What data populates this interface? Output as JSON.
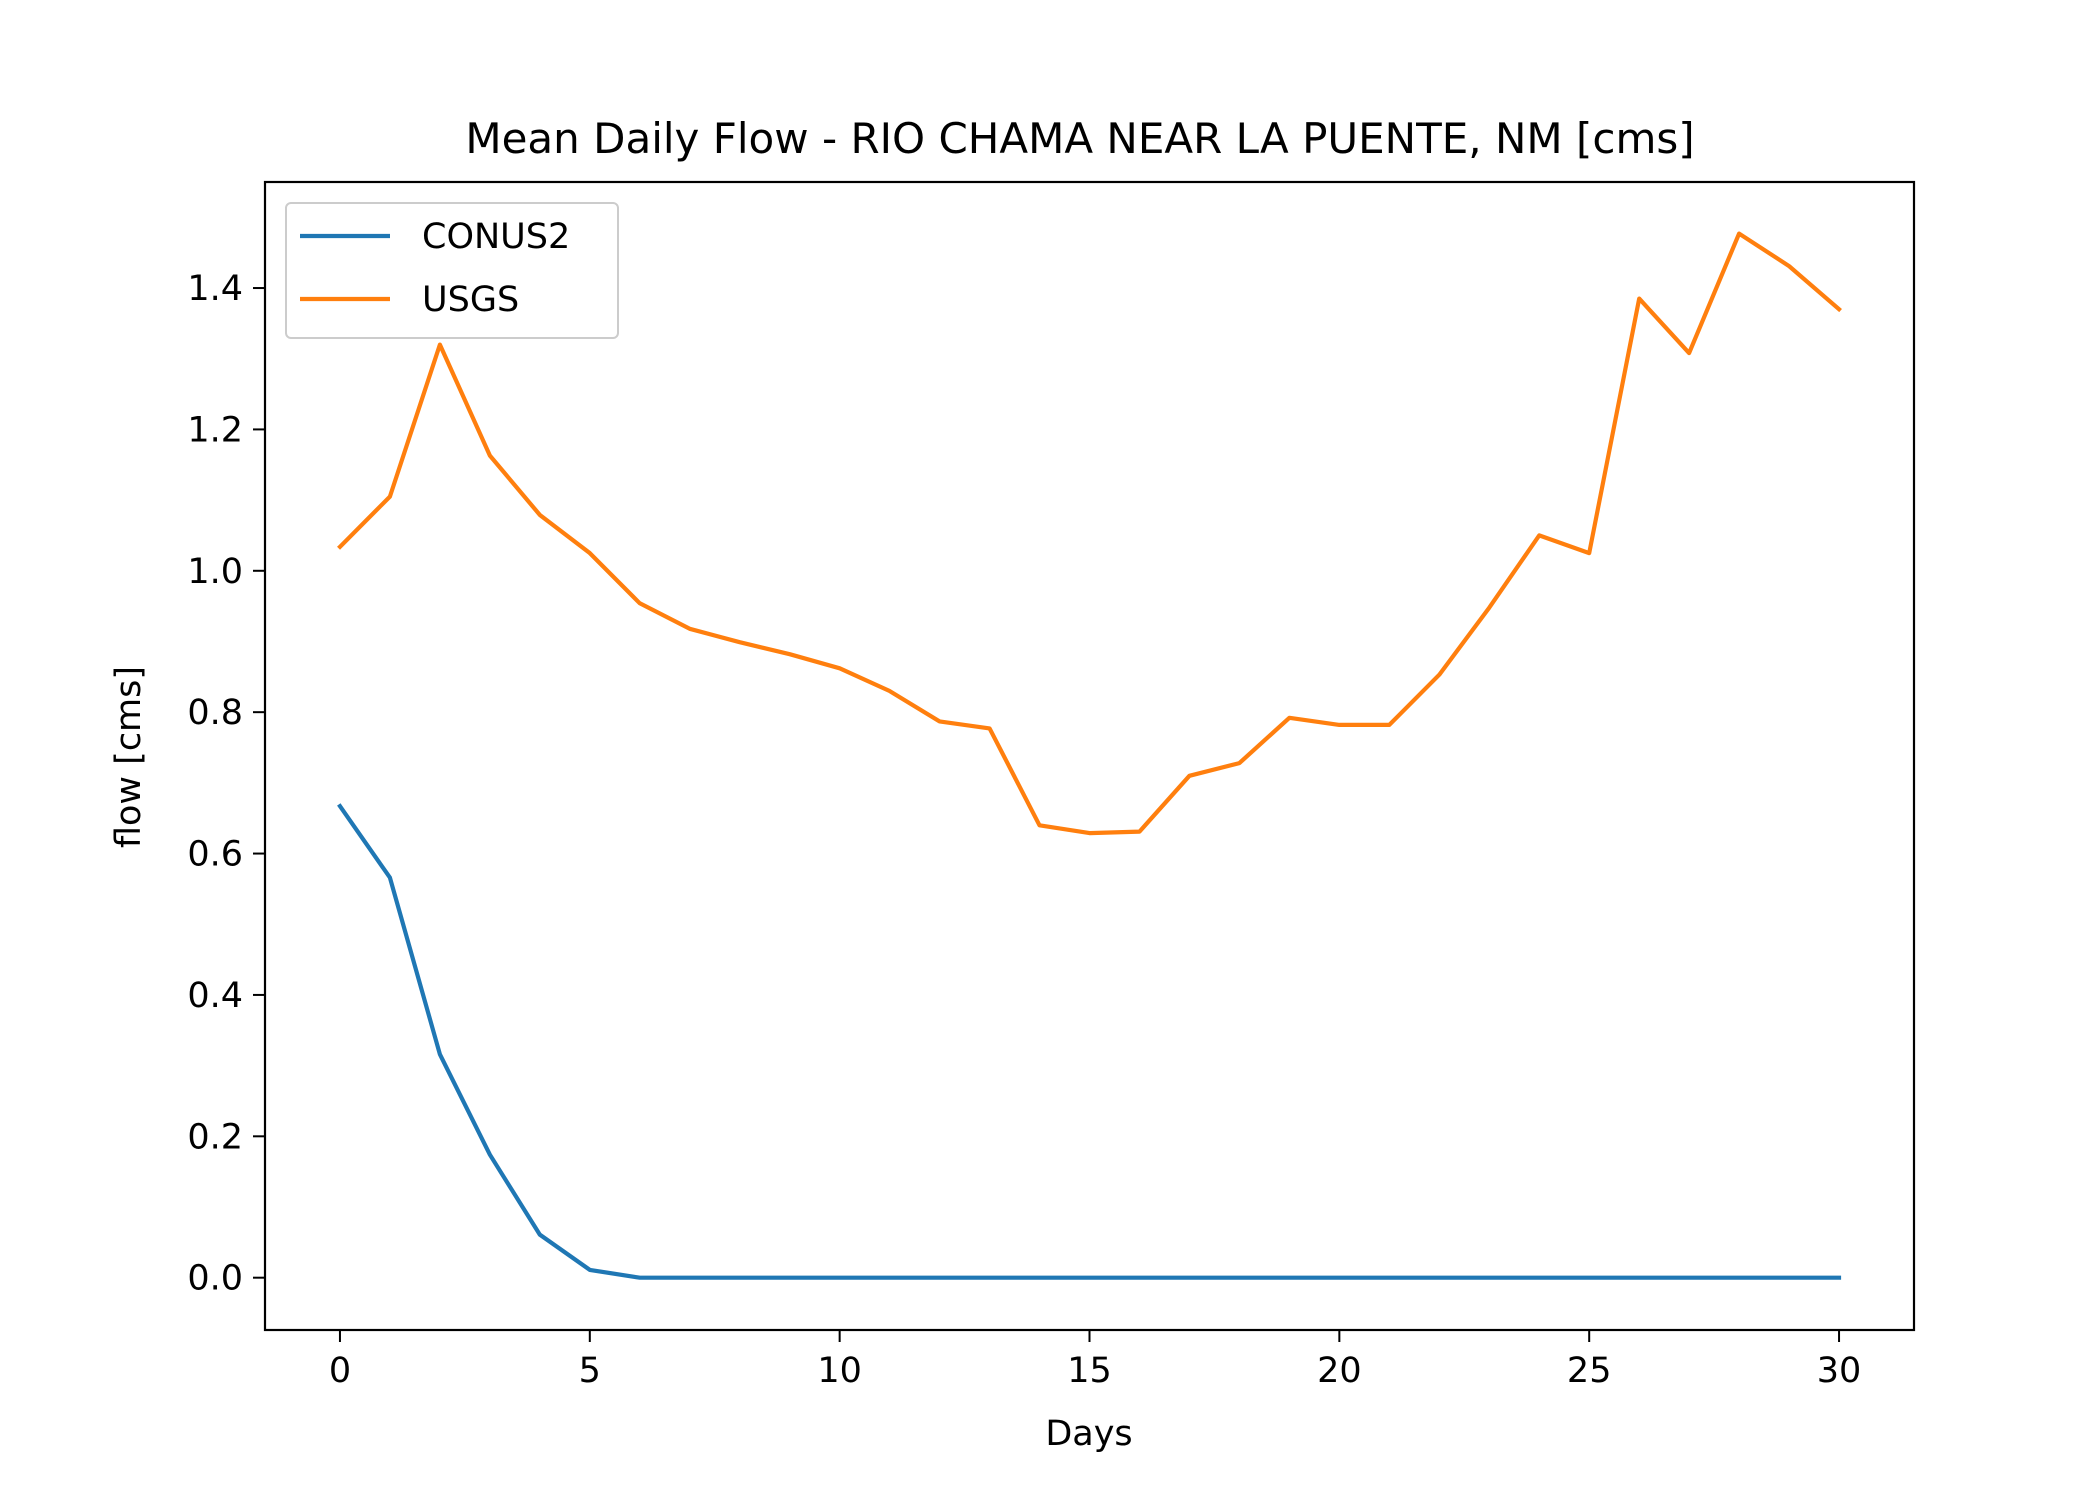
{
  "chart_data": {
    "type": "line",
    "title": "Mean Daily Flow - RIO CHAMA NEAR LA PUENTE, NM [cms]",
    "xlabel": "Days",
    "ylabel": "flow [cms]",
    "xlim": [
      -1.5,
      31.5
    ],
    "ylim": [
      -0.074,
      1.55
    ],
    "xticks": [
      0,
      5,
      10,
      15,
      20,
      25,
      30
    ],
    "xtick_labels": [
      "0",
      "5",
      "10",
      "15",
      "20",
      "25",
      "30"
    ],
    "yticks": [
      0.0,
      0.2,
      0.4,
      0.6,
      0.8,
      1.0,
      1.2,
      1.4
    ],
    "ytick_labels": [
      "0.0",
      "0.2",
      "0.4",
      "0.6",
      "0.8",
      "1.0",
      "1.2",
      "1.4"
    ],
    "grid": false,
    "legend_position": "top-left",
    "x": [
      0,
      1,
      2,
      3,
      4,
      5,
      6,
      7,
      8,
      9,
      10,
      11,
      12,
      13,
      14,
      15,
      16,
      17,
      18,
      19,
      20,
      21,
      22,
      23,
      24,
      25,
      26,
      27,
      28,
      29,
      30
    ],
    "series": [
      {
        "name": "CONUS2",
        "color": "#1f77b4",
        "values": [
          0.667,
          0.566,
          0.316,
          0.174,
          0.061,
          0.011,
          0.0,
          0.0,
          0.0,
          0.0,
          0.0,
          0.0,
          0.0,
          0.0,
          0.0,
          0.0,
          0.0,
          0.0,
          0.0,
          0.0,
          0.0,
          0.0,
          0.0,
          0.0,
          0.0,
          0.0,
          0.0,
          0.0,
          0.0,
          0.0,
          0.0
        ]
      },
      {
        "name": "USGS",
        "color": "#ff7f0e",
        "values": [
          1.034,
          1.105,
          1.32,
          1.163,
          1.079,
          1.025,
          0.954,
          0.918,
          0.899,
          0.882,
          0.862,
          0.83,
          0.787,
          0.777,
          0.64,
          0.629,
          0.631,
          0.71,
          0.728,
          0.792,
          0.782,
          0.782,
          0.853,
          0.948,
          1.05,
          1.025,
          1.385,
          1.308,
          1.477,
          1.431,
          1.37
        ]
      }
    ]
  }
}
